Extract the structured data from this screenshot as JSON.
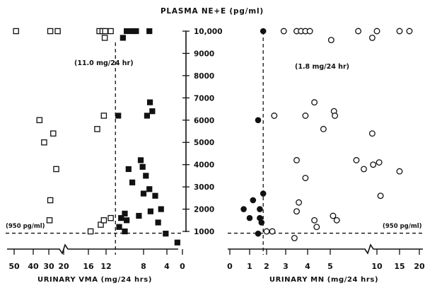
{
  "chart_data": {
    "type": "scatter",
    "title": "PLASMA NE+E (pg/ml)",
    "y_axis": {
      "ticks": [
        1000,
        2000,
        3000,
        4000,
        5000,
        6000,
        7000,
        8000,
        9000,
        10000
      ],
      "tick_labels": [
        "1000",
        "2000",
        "3000",
        "4000",
        "5000",
        "6000",
        "7000",
        "8000",
        "9000",
        "10,000"
      ],
      "ylim": [
        0,
        10000
      ]
    },
    "threshold": {
      "value": 950
    },
    "panels": [
      {
        "id": "vma",
        "xlabel": "URINARY VMA (mg/24 hrs)",
        "tick_labels": [
          "50",
          "40",
          "30",
          "20",
          "16",
          "12",
          "8",
          "4",
          "0"
        ],
        "cutoff_label": "(11.0 mg/24 hr)",
        "cutoff_x": 11.0,
        "threshold_label": "(950 pg/ml)",
        "marker": "square",
        "points": [
          {
            "x": 49,
            "y": 10000,
            "filled": false
          },
          {
            "x": 29,
            "y": 10000,
            "filled": false
          },
          {
            "x": 24,
            "y": 10000,
            "filled": false
          },
          {
            "x": 13.5,
            "y": 10000,
            "filled": false
          },
          {
            "x": 12.8,
            "y": 10000,
            "filled": false
          },
          {
            "x": 12.3,
            "y": 9700,
            "filled": false
          },
          {
            "x": 12.2,
            "y": 10000,
            "filled": false
          },
          {
            "x": 11.5,
            "y": 10000,
            "filled": false
          },
          {
            "x": 10.2,
            "y": 9700,
            "filled": true
          },
          {
            "x": 9.8,
            "y": 10000,
            "filled": true
          },
          {
            "x": 9.2,
            "y": 10000,
            "filled": true
          },
          {
            "x": 8.8,
            "y": 10000,
            "filled": true
          },
          {
            "x": 7.0,
            "y": 10000,
            "filled": true
          },
          {
            "x": 36,
            "y": 6000,
            "filled": false
          },
          {
            "x": 33,
            "y": 5000,
            "filled": false
          },
          {
            "x": 27,
            "y": 5400,
            "filled": false
          },
          {
            "x": 25,
            "y": 3800,
            "filled": false
          },
          {
            "x": 29,
            "y": 2400,
            "filled": false
          },
          {
            "x": 29.5,
            "y": 1500,
            "filled": false
          },
          {
            "x": 14,
            "y": 5600,
            "filled": false
          },
          {
            "x": 12.5,
            "y": 6200,
            "filled": false
          },
          {
            "x": 15.5,
            "y": 1000,
            "filled": false
          },
          {
            "x": 13.2,
            "y": 1300,
            "filled": false
          },
          {
            "x": 12.5,
            "y": 1500,
            "filled": false
          },
          {
            "x": 11.5,
            "y": 1600,
            "filled": false
          },
          {
            "x": 10.7,
            "y": 6200,
            "filled": true
          },
          {
            "x": 6.9,
            "y": 6800,
            "filled": true
          },
          {
            "x": 6.5,
            "y": 6400,
            "filled": true
          },
          {
            "x": 7.4,
            "y": 6200,
            "filled": true
          },
          {
            "x": 8.3,
            "y": 4200,
            "filled": true
          },
          {
            "x": 8.1,
            "y": 3900,
            "filled": true
          },
          {
            "x": 9.6,
            "y": 3800,
            "filled": true
          },
          {
            "x": 7.6,
            "y": 3500,
            "filled": true
          },
          {
            "x": 9.2,
            "y": 3200,
            "filled": true
          },
          {
            "x": 7.0,
            "y": 2900,
            "filled": true
          },
          {
            "x": 6.0,
            "y": 2600,
            "filled": true
          },
          {
            "x": 8.0,
            "y": 2700,
            "filled": true
          },
          {
            "x": 5.0,
            "y": 2000,
            "filled": true
          },
          {
            "x": 6.8,
            "y": 1900,
            "filled": true
          },
          {
            "x": 10.0,
            "y": 1800,
            "filled": true
          },
          {
            "x": 10.4,
            "y": 1600,
            "filled": true
          },
          {
            "x": 8.5,
            "y": 1700,
            "filled": true
          },
          {
            "x": 9.8,
            "y": 1500,
            "filled": true
          },
          {
            "x": 5.5,
            "y": 1400,
            "filled": true
          },
          {
            "x": 10.6,
            "y": 1200,
            "filled": true
          },
          {
            "x": 10.0,
            "y": 1000,
            "filled": true
          },
          {
            "x": 4.2,
            "y": 900,
            "filled": true
          },
          {
            "x": 1.3,
            "y": 500,
            "filled": true
          }
        ]
      },
      {
        "id": "mn",
        "xlabel": "URINARY MN (mg/24 hrs)",
        "tick_labels": [
          "0",
          "1",
          "2",
          "3",
          "4",
          "5",
          "10",
          "15",
          "20"
        ],
        "cutoff_label": "(1.8 mg/24 hr)",
        "cutoff_x": 1.8,
        "threshold_label": "(950 pg/ml)",
        "marker": "circle",
        "points": [
          {
            "x": 1.8,
            "y": 10000,
            "filled": true
          },
          {
            "x": 2.9,
            "y": 10000,
            "filled": false
          },
          {
            "x": 3.5,
            "y": 10000,
            "filled": false
          },
          {
            "x": 3.7,
            "y": 10000,
            "filled": false
          },
          {
            "x": 3.9,
            "y": 10000,
            "filled": false
          },
          {
            "x": 4.1,
            "y": 10000,
            "filled": false
          },
          {
            "x": 8.0,
            "y": 10000,
            "filled": false
          },
          {
            "x": 10,
            "y": 10000,
            "filled": false
          },
          {
            "x": 15,
            "y": 10000,
            "filled": false
          },
          {
            "x": 17.5,
            "y": 10000,
            "filled": false
          },
          {
            "x": 5.1,
            "y": 9600,
            "filled": false
          },
          {
            "x": 9.5,
            "y": 9700,
            "filled": false
          },
          {
            "x": 1.5,
            "y": 6000,
            "filled": true
          },
          {
            "x": 2.4,
            "y": 6200,
            "filled": false
          },
          {
            "x": 3.9,
            "y": 6200,
            "filled": false
          },
          {
            "x": 4.3,
            "y": 6800,
            "filled": false
          },
          {
            "x": 4.7,
            "y": 5600,
            "filled": false
          },
          {
            "x": 5.4,
            "y": 6400,
            "filled": false
          },
          {
            "x": 5.5,
            "y": 6200,
            "filled": false
          },
          {
            "x": 9.5,
            "y": 5400,
            "filled": false
          },
          {
            "x": 3.5,
            "y": 4200,
            "filled": false
          },
          {
            "x": 7.8,
            "y": 4200,
            "filled": false
          },
          {
            "x": 9.6,
            "y": 4000,
            "filled": false
          },
          {
            "x": 10.5,
            "y": 4100,
            "filled": false
          },
          {
            "x": 8.6,
            "y": 3800,
            "filled": false
          },
          {
            "x": 15,
            "y": 3700,
            "filled": false
          },
          {
            "x": 3.9,
            "y": 3400,
            "filled": false
          },
          {
            "x": 10.8,
            "y": 2600,
            "filled": false
          },
          {
            "x": 1.8,
            "y": 2700,
            "filled": true
          },
          {
            "x": 1.2,
            "y": 2400,
            "filled": true
          },
          {
            "x": 0.7,
            "y": 2000,
            "filled": true
          },
          {
            "x": 1.6,
            "y": 2000,
            "filled": true
          },
          {
            "x": 1.0,
            "y": 1600,
            "filled": true
          },
          {
            "x": 1.6,
            "y": 1600,
            "filled": true
          },
          {
            "x": 1.7,
            "y": 1400,
            "filled": true
          },
          {
            "x": 1.5,
            "y": 900,
            "filled": true
          },
          {
            "x": 3.6,
            "y": 2300,
            "filled": false
          },
          {
            "x": 3.5,
            "y": 1900,
            "filled": false
          },
          {
            "x": 4.3,
            "y": 1500,
            "filled": false
          },
          {
            "x": 4.4,
            "y": 1200,
            "filled": false
          },
          {
            "x": 5.3,
            "y": 1700,
            "filled": false
          },
          {
            "x": 5.7,
            "y": 1500,
            "filled": false
          },
          {
            "x": 2.0,
            "y": 1000,
            "filled": false
          },
          {
            "x": 2.3,
            "y": 1000,
            "filled": false
          },
          {
            "x": 3.4,
            "y": 700,
            "filled": false
          }
        ]
      }
    ]
  }
}
